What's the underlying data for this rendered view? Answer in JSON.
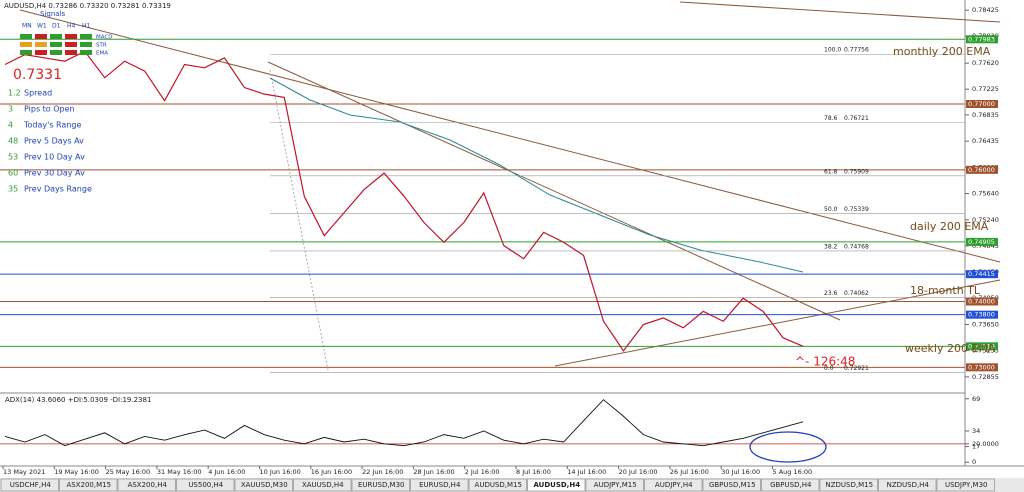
{
  "header": "AUDUSD,H4 0.73286 0.73320 0.73281 0.73319",
  "signals": {
    "title": "Signals",
    "timeframes": [
      "MN",
      "W1",
      "D1",
      "H4",
      "H1"
    ],
    "indicators": [
      "MACD",
      "STR",
      "EMA"
    ]
  },
  "bid": "0.7331",
  "stats": [
    {
      "value": "1.2",
      "label": "Spread"
    },
    {
      "value": "3",
      "label": "Pips to Open"
    },
    {
      "value": "4",
      "label": "Today's Range"
    },
    {
      "value": "48",
      "label": "Prev 5 Days Av"
    },
    {
      "value": "53",
      "label": "Prev 10 Day Av"
    },
    {
      "value": "60",
      "label": "Prev 30 Day Av"
    },
    {
      "value": "35",
      "label": "Prev Days Range"
    }
  ],
  "annotations": [
    "monthly 200 EMA",
    "daily 200 EMA",
    "18-month TL",
    "weekly 200 EMA"
  ],
  "countdown": "^- 126:48",
  "fib": [
    {
      "level": "100.0",
      "price": 0.77756
    },
    {
      "level": "78.6",
      "price": 0.76721
    },
    {
      "level": "61.8",
      "price": 0.75909
    },
    {
      "level": "50.0",
      "price": 0.75339
    },
    {
      "level": "38.2",
      "price": 0.74768
    },
    {
      "level": "23.6",
      "price": 0.74062
    },
    {
      "level": "0.0",
      "price": 0.72921
    }
  ],
  "ylim": [
    0.7261,
    0.7858
  ],
  "yticks": [
    0.78425,
    {
      "value": 0.7803,
      "label": "0.78030"
    },
    {
      "value": 0.7762,
      "label": "0.77620"
    },
    0.77225,
    0.76835,
    0.76435,
    0.76035,
    {
      "value": 0.7564,
      "label": "0.75640"
    },
    {
      "value": 0.7524,
      "label": "0.75240"
    },
    0.74845,
    {
      "value": 0.7445,
      "label": "0.74450"
    },
    {
      "value": 0.7405,
      "label": "0.74050"
    },
    {
      "value": 0.7365,
      "label": "0.73650"
    },
    0.73255,
    0.72855
  ],
  "levels": [
    {
      "value": 0.77983,
      "color": "#2e9e2e"
    },
    {
      "value": 0.77,
      "label": "0.77000",
      "color": "#a0522d"
    },
    {
      "value": 0.76,
      "label": "0.76000",
      "color": "#a0522d"
    },
    {
      "value": 0.74905,
      "color": "#2e9e2e"
    },
    {
      "value": 0.74415,
      "color": "#1f4fd8"
    },
    {
      "value": 0.74,
      "label": "0.74000",
      "color": "#a0522d"
    },
    {
      "value": 0.738,
      "label": "0.73800",
      "color": "#1f4fd8"
    },
    {
      "value": 0.73319,
      "color": "#2e9e2e"
    },
    {
      "value": 0.73,
      "label": "0.73000",
      "color": "#a0522d"
    }
  ],
  "close": [
    0.776,
    0.7775,
    0.777,
    0.7765,
    0.778,
    0.774,
    0.7765,
    0.775,
    0.7705,
    0.776,
    0.7755,
    0.777,
    0.7725,
    0.7715,
    0.771,
    0.756,
    0.75,
    0.7535,
    0.757,
    0.7595,
    0.756,
    0.752,
    0.749,
    0.752,
    0.7565,
    0.7485,
    0.7465,
    0.7505,
    0.749,
    0.747,
    0.737,
    0.7325,
    0.7365,
    0.7375,
    0.736,
    0.7385,
    0.737,
    0.7405,
    0.7385,
    0.7345,
    0.7332
  ],
  "adx": {
    "title": "ADX(14) 43.6060 +DI:5.0309 -DI:19.2381",
    "ylim": [
      -3,
      72
    ],
    "yticks": [
      69,
      34,
      {
        "value": 20,
        "label": "20.0000"
      },
      17,
      0
    ],
    "values": [
      28,
      22,
      30,
      18,
      25,
      32,
      20,
      28,
      24,
      30,
      35,
      26,
      40,
      30,
      24,
      20,
      27,
      22,
      25,
      20,
      18,
      22,
      30,
      26,
      34,
      24,
      20,
      25,
      22,
      45,
      68,
      50,
      30,
      22,
      20,
      18,
      22,
      26,
      32,
      38,
      44
    ]
  },
  "time_axis": [
    "13 May 2021",
    "19 May 16:00",
    "25 May 16:00",
    "31 May 16:00",
    "4 Jun 16:00",
    "10 Jun 16:00",
    "16 Jun 16:00",
    "22 Jun 16:00",
    "28 Jun 16:00",
    "2 Jul 16:00",
    "8 Jul 16:00",
    "14 Jul 16:00",
    "20 Jul 16:00",
    "26 Jul 16:00",
    "30 Jul 16:00",
    "5 Aug 16:00"
  ],
  "tabs": [
    "USDCHF,H4",
    "ASX200,M15",
    "ASX200,H4",
    "US500,H4",
    "XAUUSD,M30",
    "XAUUSD,H4",
    "EURUSD,M30",
    "EURUSD,H4",
    "AUDUSD,M15",
    "AUDUSD,H4",
    "AUDJPY,M15",
    "AUDJPY,H4",
    "GBPUSD,M15",
    "GBPUSD,H4",
    "NZDUSD,M15",
    "NZDUSD,H4",
    "USDJPY,M30"
  ],
  "active_tab": 9
}
